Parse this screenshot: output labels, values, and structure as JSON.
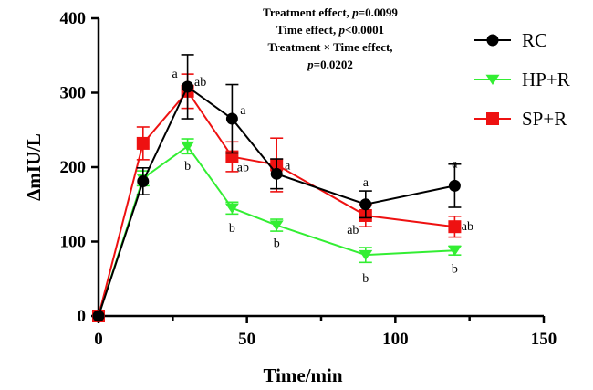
{
  "chart_data": {
    "type": "line",
    "xlabel": "Time/min",
    "ylabel": "ΔmIU/L",
    "xlim": [
      0,
      150
    ],
    "ylim": [
      0,
      400
    ],
    "xticks": [
      0,
      50,
      100,
      150
    ],
    "yticks": [
      0,
      100,
      200,
      300,
      400
    ],
    "grid": false,
    "legend_position": "top-right",
    "stats": [
      {
        "label": "Treatment effect, ",
        "p": "p",
        "value": "=0.0099"
      },
      {
        "label": "Time effect, ",
        "p": "p",
        "value": "<0.0001"
      },
      {
        "label": "Treatment × Time effect,",
        "p": "",
        "value": ""
      },
      {
        "label": "",
        "p": "p",
        "value": "=0.0202"
      }
    ],
    "series": [
      {
        "name": "RC",
        "color": "#000000",
        "marker": "circle",
        "x": [
          0,
          15,
          30,
          45,
          60,
          90,
          120
        ],
        "y": [
          0,
          181,
          308,
          265,
          191,
          150,
          175
        ],
        "err": [
          0,
          18,
          43,
          46,
          20,
          18,
          29
        ],
        "labels": [
          "",
          "",
          "a",
          "a",
          "a",
          "a",
          "a"
        ]
      },
      {
        "name": "HP+R",
        "color": "#33ee33",
        "marker": "triangle-down",
        "x": [
          0,
          15,
          30,
          45,
          60,
          90,
          120
        ],
        "y": [
          0,
          185,
          228,
          145,
          122,
          82,
          88
        ],
        "err": [
          0,
          10,
          10,
          8,
          8,
          10,
          6
        ],
        "labels": [
          "",
          "",
          "b",
          "b",
          "b",
          "b",
          "b"
        ]
      },
      {
        "name": "SP+R",
        "color": "#ee1111",
        "marker": "square",
        "x": [
          0,
          15,
          30,
          45,
          60,
          90,
          120
        ],
        "y": [
          0,
          232,
          302,
          214,
          203,
          135,
          120
        ],
        "err": [
          0,
          22,
          23,
          20,
          36,
          15,
          14
        ],
        "labels": [
          "",
          "",
          "ab",
          "ab",
          "",
          "ab",
          "ab"
        ]
      }
    ]
  }
}
